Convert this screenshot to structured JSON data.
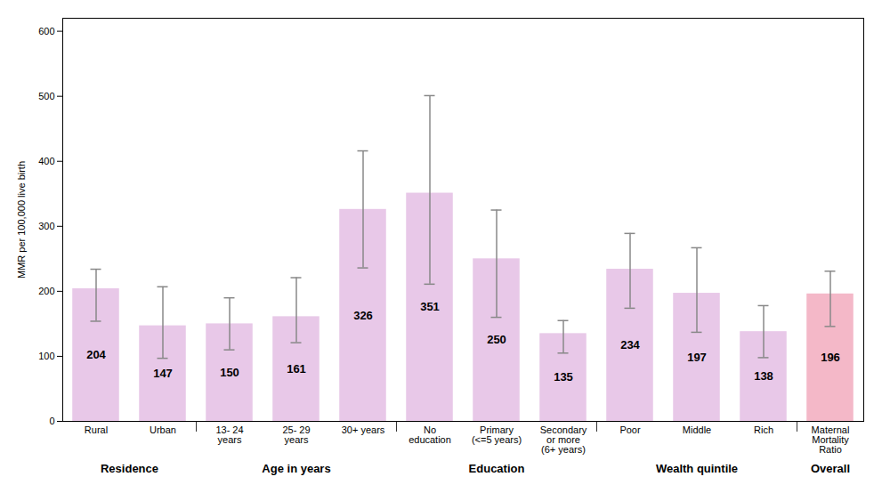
{
  "chart_data": {
    "type": "bar",
    "categories": [
      "Rural",
      "Urban",
      "13- 24\nyears",
      "25- 29\nyears",
      "30+ years",
      "No\neducation",
      "Primary\n(<=5 years)",
      "Secondary\nor more\n(6+ years)",
      "Poor",
      "Middle",
      "Rich",
      "Maternal\nMortality\nRatio"
    ],
    "values": [
      204,
      147,
      150,
      161,
      326,
      351,
      250,
      135,
      234,
      197,
      138,
      196
    ],
    "err_lower": [
      50,
      50,
      40,
      40,
      90,
      140,
      90,
      30,
      60,
      60,
      40,
      50
    ],
    "err_upper": [
      30,
      60,
      40,
      60,
      90,
      150,
      75,
      20,
      55,
      70,
      40,
      35
    ],
    "groups": [
      "Residence",
      "Residence",
      "Age in years",
      "Age in years",
      "Age in years",
      "Education",
      "Education",
      "Education",
      "Wealth quintile",
      "Wealth quintile",
      "Wealth quintile",
      "Overall"
    ],
    "colors": [
      "#e8c8e8",
      "#e8c8e8",
      "#e8c8e8",
      "#e8c8e8",
      "#e8c8e8",
      "#e8c8e8",
      "#e8c8e8",
      "#e8c8e8",
      "#e8c8e8",
      "#e8c8e8",
      "#e8c8e8",
      "#f4b8c8"
    ],
    "ylabel": "MMR per 100,000 live birth",
    "ylim": [
      0,
      620
    ],
    "yticks": [
      0,
      100,
      200,
      300,
      400,
      500,
      600
    ],
    "data_labels": true
  }
}
